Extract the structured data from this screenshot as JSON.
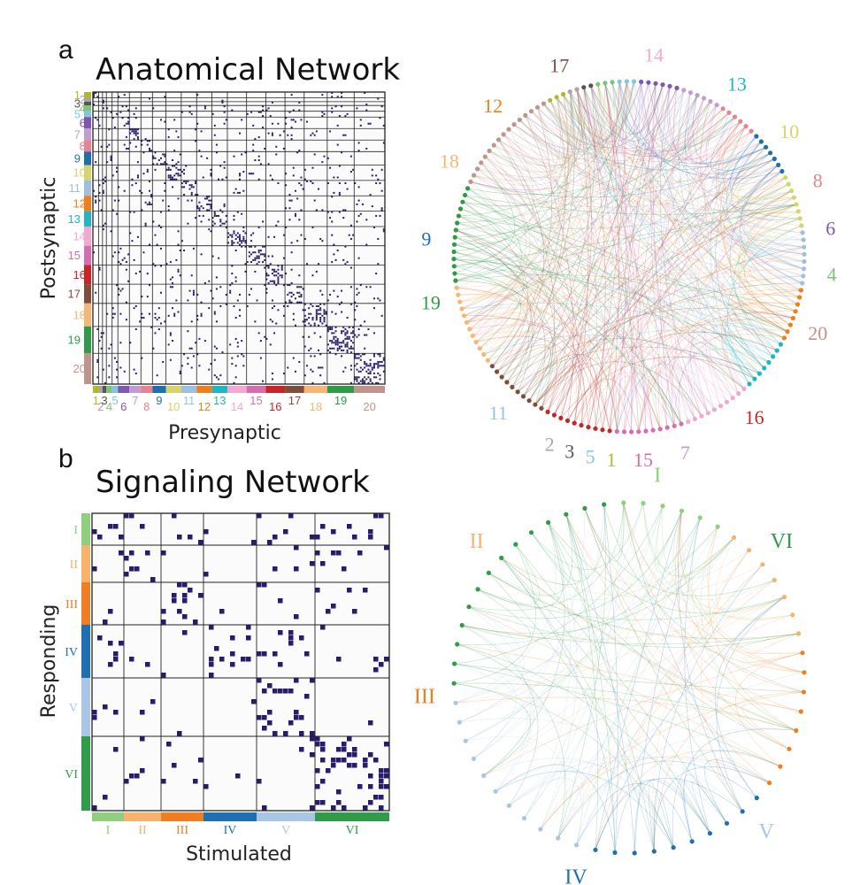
{
  "panel_a": {
    "letter": "a",
    "title": "Anatomical Network",
    "x_axis": "Presynaptic",
    "y_axis": "Postsynaptic",
    "groups": [
      {
        "label": "1",
        "size": 3,
        "color": "#b5b72b"
      },
      {
        "label": "2",
        "size": 2,
        "color": "#a6a6a6"
      },
      {
        "label": "3",
        "size": 2,
        "color": "#555555"
      },
      {
        "label": "4",
        "size": 3,
        "color": "#7cc576"
      },
      {
        "label": "5",
        "size": 3,
        "color": "#86c5e0"
      },
      {
        "label": "6",
        "size": 6,
        "color": "#7e57b0"
      },
      {
        "label": "7",
        "size": 6,
        "color": "#c39bd3"
      },
      {
        "label": "8",
        "size": 6,
        "color": "#e7828e"
      },
      {
        "label": "9",
        "size": 7,
        "color": "#1f6fb0"
      },
      {
        "label": "10",
        "size": 8,
        "color": "#d6d46a"
      },
      {
        "label": "11",
        "size": 8,
        "color": "#9fbfe0"
      },
      {
        "label": "12",
        "size": 8,
        "color": "#ef7f1a"
      },
      {
        "label": "13",
        "size": 8,
        "color": "#22b5c4"
      },
      {
        "label": "14",
        "size": 10,
        "color": "#f2a9cf"
      },
      {
        "label": "15",
        "size": 10,
        "color": "#d86cb1"
      },
      {
        "label": "16",
        "size": 10,
        "color": "#c8252b"
      },
      {
        "label": "17",
        "size": 10,
        "color": "#7f4e3b"
      },
      {
        "label": "18",
        "size": 12,
        "color": "#f6b774"
      },
      {
        "label": "19",
        "size": 14,
        "color": "#2f9b46"
      },
      {
        "label": "20",
        "size": 16,
        "color": "#c0948a"
      }
    ],
    "circle_labels": [
      {
        "label": "17",
        "angle": -110
      },
      {
        "label": "14",
        "angle": -83
      },
      {
        "label": "13",
        "angle": -58
      },
      {
        "label": "10",
        "angle": -38
      },
      {
        "label": "8",
        "angle": -22
      },
      {
        "label": "6",
        "angle": -8
      },
      {
        "label": "4",
        "angle": 5
      },
      {
        "label": "20",
        "angle": 22
      },
      {
        "label": "16",
        "angle": 52
      },
      {
        "label": "7",
        "angle": 74
      },
      {
        "label": "15",
        "angle": 86
      },
      {
        "label": "1",
        "angle": 95
      },
      {
        "label": "5",
        "angle": 101
      },
      {
        "label": "3",
        "angle": 107
      },
      {
        "label": "2",
        "angle": 113
      },
      {
        "label": "11",
        "angle": 130
      },
      {
        "label": "19",
        "angle": 167
      },
      {
        "label": "9",
        "angle": 185
      },
      {
        "label": "18",
        "angle": 208
      },
      {
        "label": "12",
        "angle": 228
      }
    ]
  },
  "panel_b": {
    "letter": "b",
    "title": "Signaling Network",
    "x_axis": "Stimulated",
    "y_axis": "Responding",
    "groups": [
      {
        "label": "I",
        "size": 6,
        "color": "#8fcf7e"
      },
      {
        "label": "II",
        "size": 7,
        "color": "#f7b26b"
      },
      {
        "label": "III",
        "size": 8,
        "color": "#ee7e21"
      },
      {
        "label": "IV",
        "size": 10,
        "color": "#1f70b2"
      },
      {
        "label": "V",
        "size": 11,
        "color": "#a9c6e6"
      },
      {
        "label": "VI",
        "size": 14,
        "color": "#2e9c48"
      }
    ],
    "circle_labels": [
      {
        "label": "I",
        "angle": -82
      },
      {
        "label": "VI",
        "angle": -42
      },
      {
        "label": "V",
        "angle": 48
      },
      {
        "label": "IV",
        "angle": 105
      },
      {
        "label": "III",
        "angle": 175
      },
      {
        "label": "II",
        "angle": 222
      }
    ]
  }
}
